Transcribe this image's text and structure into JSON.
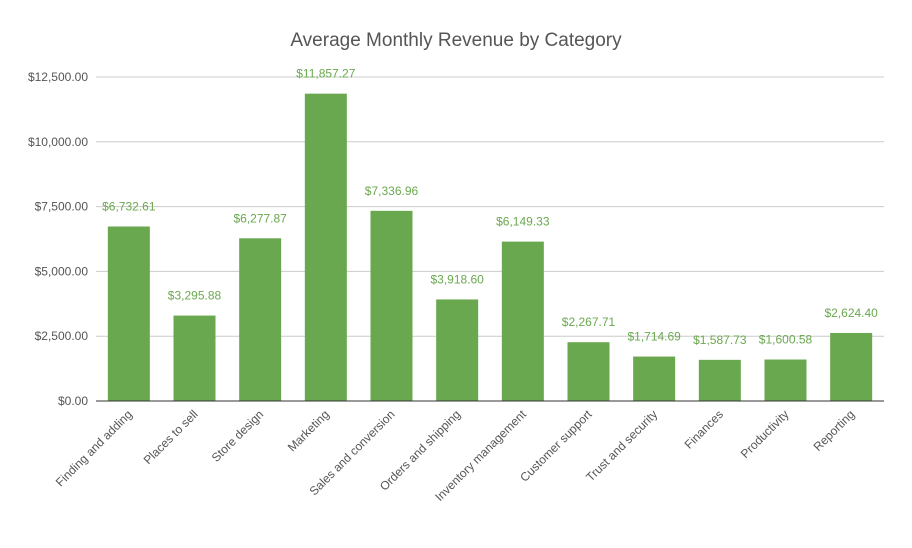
{
  "chart_data": {
    "type": "bar",
    "title": "Average Monthly Revenue by Category",
    "xlabel": "",
    "ylabel": "",
    "categories": [
      "Finding and adding",
      "Places to sell",
      "Store design",
      "Marketing",
      "Sales and conversion",
      "Orders and shipping",
      "Inventory management",
      "Customer support",
      "Trust and security",
      "Finances",
      "Productivity",
      "Reporting"
    ],
    "values": [
      6732.61,
      3295.88,
      6277.87,
      11857.27,
      7336.96,
      3918.6,
      6149.33,
      2267.71,
      1714.69,
      1587.73,
      1600.58,
      2624.4
    ],
    "data_labels": [
      "$6,732.61",
      "$3,295.88",
      "$6,277.87",
      "$11,857.27",
      "$7,336.96",
      "$3,918.60",
      "$6,149.33",
      "$2,267.71",
      "$1,714.69",
      "$1,587.73",
      "$1,600.58",
      "$2,624.40"
    ],
    "yticks": [
      0,
      2500,
      5000,
      7500,
      10000,
      12500
    ],
    "ytick_labels": [
      "$0.00",
      "$2,500.00",
      "$5,000.00",
      "$7,500.00",
      "$10,000.00",
      "$12,500.00"
    ],
    "ylim": [
      0,
      12500
    ],
    "grid": true,
    "legend": "none",
    "colors": {
      "bar": "#6aa84f",
      "data_label": "#6aa84f",
      "grid": "#cccccc",
      "axis_line": "#333333",
      "text": "#555555"
    }
  }
}
